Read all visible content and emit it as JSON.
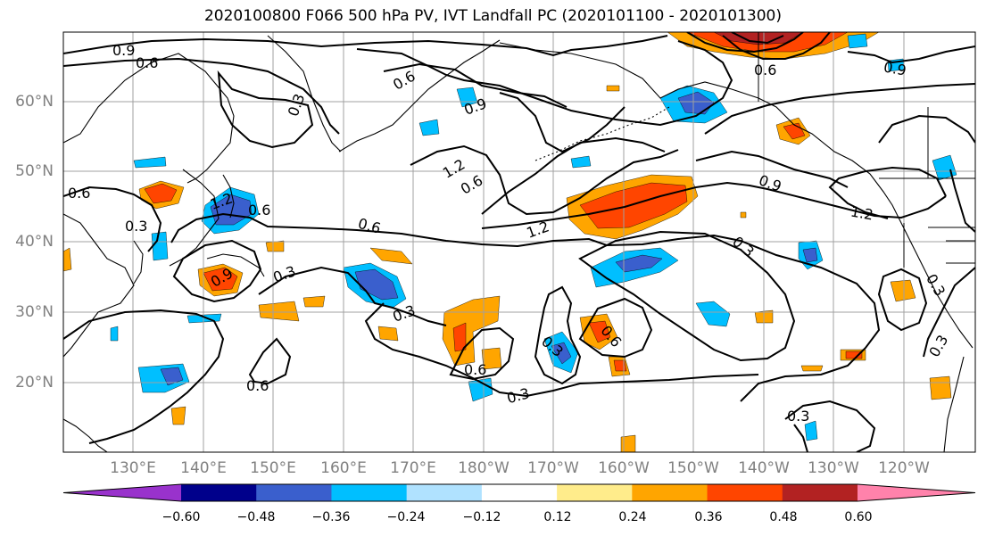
{
  "title": "2020100800 F066 500 hPa PV, IVT Landfall PC (2020101100 - 2020101300)",
  "lat_labels": [
    "60°N",
    "50°N",
    "40°N",
    "30°N",
    "20°N"
  ],
  "lon_labels": [
    "130°E",
    "140°E",
    "150°E",
    "160°E",
    "170°E",
    "180°W",
    "170°W",
    "160°W",
    "150°W",
    "140°W",
    "130°W",
    "120°W"
  ],
  "contour_labels": [
    "0.9",
    "0.6",
    "0.3",
    "0.6",
    "0.9",
    "1.2",
    "0.6",
    "1.2",
    "0.9",
    "1.2",
    "0.6",
    "0.3",
    "0.6",
    "0.9",
    "0.3",
    "0.3",
    "0.6",
    "0.3",
    "0.6",
    "0.3",
    "0.6",
    "0.3",
    "0.3",
    "1.2",
    "0.6",
    "0.9",
    "0.6",
    "0.3",
    "0.3"
  ],
  "colorbar": {
    "ticks": [
      "−0.60",
      "−0.48",
      "−0.36",
      "−0.24",
      "−0.12",
      "0.12",
      "0.24",
      "0.36",
      "0.48",
      "0.60"
    ],
    "colors": [
      "#9932CC",
      "#00008B",
      "#3A5FCD",
      "#00BFFF",
      "#B0E2FF",
      "#FFFFFF",
      "#FFEC8B",
      "#FFA500",
      "#FF4500",
      "#B22222",
      "#FF82AB"
    ]
  }
}
